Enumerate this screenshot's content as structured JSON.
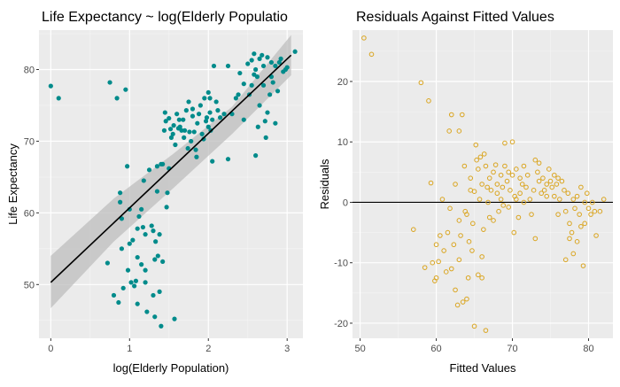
{
  "chart_data": [
    {
      "type": "scatter",
      "title": "Life Expectancy ~ log(Elderly Populatio",
      "xlabel": "log(Elderly Population)",
      "ylabel": "Life Expectancy",
      "xlim": [
        -0.15,
        3.2
      ],
      "ylim": [
        42.5,
        85.5
      ],
      "xticks": [
        0,
        1,
        2,
        3
      ],
      "yticks": [
        50,
        60,
        70,
        80
      ],
      "grid": true,
      "point_color": "#008B8B",
      "fit_color": "#000000",
      "band_color": "#BEBEBE",
      "fit_line": {
        "x": [
          0.0,
          3.05
        ],
        "y": [
          50.3,
          82.0
        ]
      },
      "confidence_band": {
        "x": [
          0.0,
          0.8,
          1.55,
          2.3,
          3.05
        ],
        "lower": [
          46.7,
          56.0,
          63.4,
          71.0,
          79.2
        ],
        "upper": [
          54.0,
          62.0,
          68.2,
          74.8,
          84.8
        ]
      },
      "points": [
        [
          0.0,
          77.7
        ],
        [
          0.1,
          76.0
        ],
        [
          0.72,
          53.0
        ],
        [
          0.75,
          78.2
        ],
        [
          0.8,
          48.5
        ],
        [
          0.84,
          76.0
        ],
        [
          0.86,
          47.5
        ],
        [
          0.88,
          62.8
        ],
        [
          0.9,
          59.2
        ],
        [
          0.9,
          55.0
        ],
        [
          0.92,
          49.5
        ],
        [
          0.95,
          77.2
        ],
        [
          0.97,
          66.5
        ],
        [
          0.98,
          52.0
        ],
        [
          1.0,
          60.5
        ],
        [
          1.0,
          55.7
        ],
        [
          1.02,
          50.3
        ],
        [
          1.04,
          56.2
        ],
        [
          1.06,
          49.8
        ],
        [
          1.08,
          50.5
        ],
        [
          1.1,
          57.8
        ],
        [
          1.1,
          47.3
        ],
        [
          1.12,
          59.5
        ],
        [
          1.15,
          52.8
        ],
        [
          1.15,
          60.5
        ],
        [
          1.17,
          58.0
        ],
        [
          1.18,
          64.5
        ],
        [
          1.2,
          57.0
        ],
        [
          1.2,
          52.0
        ],
        [
          1.2,
          50.3
        ],
        [
          1.22,
          46.2
        ],
        [
          1.25,
          66.0
        ],
        [
          1.28,
          58.2
        ],
        [
          1.3,
          57.5
        ],
        [
          1.3,
          48.5
        ],
        [
          1.32,
          45.5
        ],
        [
          1.32,
          53.5
        ],
        [
          1.33,
          56.0
        ],
        [
          1.35,
          66.5
        ],
        [
          1.35,
          63.0
        ],
        [
          1.36,
          54.0
        ],
        [
          1.38,
          57.0
        ],
        [
          1.38,
          49.0
        ],
        [
          1.4,
          66.8
        ],
        [
          1.4,
          44.2
        ],
        [
          1.42,
          53.2
        ],
        [
          1.42,
          66.8
        ],
        [
          1.44,
          71.5
        ],
        [
          1.45,
          74.0
        ],
        [
          1.46,
          72.8
        ],
        [
          1.47,
          60.8
        ],
        [
          1.48,
          62.8
        ],
        [
          1.5,
          73.2
        ],
        [
          1.52,
          71.7
        ],
        [
          1.53,
          70.5
        ],
        [
          1.55,
          71.0
        ],
        [
          1.56,
          72.2
        ],
        [
          1.57,
          45.2
        ],
        [
          1.58,
          69.5
        ],
        [
          1.6,
          73.8
        ],
        [
          1.62,
          71.8
        ],
        [
          1.63,
          73.0
        ],
        [
          1.64,
          72.0
        ],
        [
          1.66,
          71.5
        ],
        [
          1.68,
          73.0
        ],
        [
          1.69,
          70.5
        ],
        [
          1.7,
          71.5
        ],
        [
          1.72,
          74.3
        ],
        [
          1.74,
          69.0
        ],
        [
          1.75,
          75.5
        ],
        [
          1.76,
          71.3
        ],
        [
          1.78,
          70.0
        ],
        [
          1.8,
          73.5
        ],
        [
          1.8,
          74.5
        ],
        [
          1.82,
          71.3
        ],
        [
          1.84,
          68.8
        ],
        [
          1.85,
          67.8
        ],
        [
          1.86,
          72.5
        ],
        [
          1.88,
          73.8
        ],
        [
          1.9,
          75.0
        ],
        [
          1.92,
          71.0
        ],
        [
          1.94,
          70.3
        ],
        [
          1.95,
          76.0
        ],
        [
          1.97,
          72.8
        ],
        [
          1.98,
          73.3
        ],
        [
          2.0,
          72.0
        ],
        [
          2.0,
          76.8
        ],
        [
          2.02,
          74.0
        ],
        [
          2.03,
          71.5
        ],
        [
          2.05,
          73.0
        ],
        [
          2.05,
          67.2
        ],
        [
          2.07,
          80.5
        ],
        [
          2.1,
          75.5
        ],
        [
          2.12,
          74.3
        ],
        [
          2.15,
          73.3
        ],
        [
          2.2,
          73.8
        ],
        [
          2.25,
          80.5
        ],
        [
          2.25,
          67.5
        ],
        [
          2.3,
          73.8
        ],
        [
          2.35,
          76.0
        ],
        [
          2.38,
          76.5
        ],
        [
          2.4,
          79.5
        ],
        [
          2.45,
          78.0
        ],
        [
          2.45,
          73.0
        ],
        [
          2.5,
          80.8
        ],
        [
          2.52,
          76.5
        ],
        [
          2.55,
          81.3
        ],
        [
          2.55,
          77.8
        ],
        [
          2.58,
          82.2
        ],
        [
          2.6,
          80.0
        ],
        [
          2.6,
          68.0
        ],
        [
          2.62,
          79.0
        ],
        [
          2.63,
          72.0
        ],
        [
          2.65,
          81.5
        ],
        [
          2.65,
          75.0
        ],
        [
          2.68,
          82.0
        ],
        [
          2.7,
          80.5
        ],
        [
          2.72,
          72.8
        ],
        [
          2.73,
          70.5
        ],
        [
          2.75,
          81.7
        ],
        [
          2.75,
          74.0
        ],
        [
          2.78,
          76.5
        ],
        [
          2.8,
          79.0
        ],
        [
          2.8,
          81.0
        ],
        [
          2.82,
          78.2
        ],
        [
          2.85,
          80.5
        ],
        [
          2.85,
          72.5
        ],
        [
          2.88,
          77.0
        ],
        [
          2.9,
          81.0
        ],
        [
          2.92,
          81.5
        ],
        [
          2.95,
          79.7
        ],
        [
          2.98,
          80.0
        ],
        [
          3.0,
          80.3
        ],
        [
          3.1,
          82.5
        ],
        [
          2.02,
          76.0
        ],
        [
          1.5,
          66.2
        ],
        [
          1.1,
          53.8
        ],
        [
          0.88,
          61.5
        ],
        [
          2.58,
          79.3
        ],
        [
          2.7,
          77.8
        ]
      ]
    },
    {
      "type": "scatter",
      "title": "Residuals Against Fitted Values",
      "xlabel": "Fitted Values",
      "ylabel": "Residuals",
      "xlim": [
        49.0,
        83.2
      ],
      "ylim": [
        -22.5,
        28.5
      ],
      "xticks": [
        50,
        60,
        70,
        80
      ],
      "yticks": [
        -20,
        -10,
        0,
        10,
        20
      ],
      "grid": true,
      "point_color": "#DAA520",
      "reference_line_y": 0,
      "points": [
        [
          50.5,
          27.2
        ],
        [
          51.5,
          24.5
        ],
        [
          57.0,
          -4.5
        ],
        [
          58.0,
          19.8
        ],
        [
          58.5,
          -10.8
        ],
        [
          59.0,
          16.8
        ],
        [
          59.3,
          3.2
        ],
        [
          59.5,
          -10.0
        ],
        [
          59.8,
          -13.0
        ],
        [
          60.0,
          -12.5
        ],
        [
          60.3,
          -9.8
        ],
        [
          60.5,
          -5.5
        ],
        [
          60.8,
          0.5
        ],
        [
          61.0,
          -8.0
        ],
        [
          61.3,
          -11.5
        ],
        [
          61.5,
          -5.0
        ],
        [
          61.7,
          11.8
        ],
        [
          61.8,
          -1.0
        ],
        [
          62.0,
          14.5
        ],
        [
          62.0,
          -11.0
        ],
        [
          62.3,
          -7.0
        ],
        [
          62.5,
          -14.5
        ],
        [
          62.5,
          3.0
        ],
        [
          62.8,
          -17.0
        ],
        [
          63.0,
          11.8
        ],
        [
          63.0,
          -9.5
        ],
        [
          63.2,
          -5.5
        ],
        [
          63.4,
          14.5
        ],
        [
          63.5,
          -16.5
        ],
        [
          63.7,
          6.0
        ],
        [
          63.8,
          -1.5
        ],
        [
          64.0,
          -2.0
        ],
        [
          64.2,
          -12.5
        ],
        [
          64.3,
          -6.5
        ],
        [
          64.5,
          4.0
        ],
        [
          64.5,
          2.0
        ],
        [
          64.7,
          -8.0
        ],
        [
          64.8,
          -3.5
        ],
        [
          65.0,
          1.8
        ],
        [
          65.0,
          -20.5
        ],
        [
          65.2,
          9.5
        ],
        [
          65.3,
          7.0
        ],
        [
          65.5,
          -12.0
        ],
        [
          65.5,
          5.5
        ],
        [
          65.7,
          0.5
        ],
        [
          65.8,
          7.5
        ],
        [
          66.0,
          -9.0
        ],
        [
          66.0,
          3.0
        ],
        [
          66.2,
          -4.5
        ],
        [
          66.3,
          8.0
        ],
        [
          66.5,
          -21.2
        ],
        [
          66.5,
          6.0
        ],
        [
          66.7,
          2.5
        ],
        [
          66.8,
          0.0
        ],
        [
          67.0,
          -2.5
        ],
        [
          67.0,
          4.0
        ],
        [
          67.2,
          2.0
        ],
        [
          67.5,
          5.0
        ],
        [
          67.5,
          -3.0
        ],
        [
          67.8,
          6.2
        ],
        [
          68.0,
          3.0
        ],
        [
          68.0,
          1.5
        ],
        [
          68.2,
          -1.5
        ],
        [
          68.5,
          4.5
        ],
        [
          68.5,
          0.5
        ],
        [
          68.7,
          2.5
        ],
        [
          68.8,
          -0.5
        ],
        [
          69.0,
          6.0
        ],
        [
          69.0,
          9.8
        ],
        [
          69.3,
          3.5
        ],
        [
          69.5,
          -0.8
        ],
        [
          69.5,
          5.0
        ],
        [
          69.7,
          2.0
        ],
        [
          70.0,
          10.0
        ],
        [
          70.0,
          4.5
        ],
        [
          70.2,
          -5.0
        ],
        [
          70.3,
          1.0
        ],
        [
          70.5,
          5.5
        ],
        [
          70.5,
          0.5
        ],
        [
          70.8,
          -2.5
        ],
        [
          71.0,
          4.0
        ],
        [
          71.0,
          1.5
        ],
        [
          71.3,
          3.0
        ],
        [
          71.5,
          6.0
        ],
        [
          71.5,
          0.0
        ],
        [
          71.8,
          2.5
        ],
        [
          72.0,
          4.5
        ],
        [
          72.3,
          0.5
        ],
        [
          72.5,
          -2.0
        ],
        [
          72.8,
          2.0
        ],
        [
          73.0,
          7.0
        ],
        [
          73.0,
          -6.0
        ],
        [
          73.3,
          5.0
        ],
        [
          73.5,
          3.5
        ],
        [
          73.5,
          6.5
        ],
        [
          73.8,
          1.5
        ],
        [
          74.0,
          4.0
        ],
        [
          74.2,
          2.0
        ],
        [
          74.5,
          3.0
        ],
        [
          74.5,
          1.0
        ],
        [
          74.8,
          5.5
        ],
        [
          75.0,
          3.5
        ],
        [
          75.2,
          2.5
        ],
        [
          75.5,
          4.5
        ],
        [
          75.5,
          1.0
        ],
        [
          75.8,
          3.0
        ],
        [
          76.0,
          -2.0
        ],
        [
          76.0,
          4.0
        ],
        [
          76.2,
          0.5
        ],
        [
          76.5,
          3.5
        ],
        [
          76.8,
          2.0
        ],
        [
          77.0,
          -1.5
        ],
        [
          77.0,
          -9.5
        ],
        [
          77.3,
          1.5
        ],
        [
          77.5,
          -3.5
        ],
        [
          77.5,
          -6.0
        ],
        [
          77.8,
          -5.0
        ],
        [
          78.0,
          0.5
        ],
        [
          78.0,
          -8.5
        ],
        [
          78.2,
          -1.0
        ],
        [
          78.5,
          1.0
        ],
        [
          78.5,
          -6.5
        ],
        [
          78.8,
          -2.0
        ],
        [
          79.0,
          2.5
        ],
        [
          79.0,
          -4.0
        ],
        [
          79.3,
          -10.5
        ],
        [
          79.5,
          0.0
        ],
        [
          79.5,
          -3.5
        ],
        [
          79.8,
          1.5
        ],
        [
          80.0,
          -1.0
        ],
        [
          80.3,
          -2.0
        ],
        [
          80.5,
          0.0
        ],
        [
          80.8,
          -1.5
        ],
        [
          81.0,
          -5.5
        ],
        [
          81.5,
          -1.5
        ],
        [
          82.0,
          0.5
        ],
        [
          66.0,
          -12.5
        ],
        [
          64.0,
          -16.0
        ],
        [
          60.0,
          -7.0
        ],
        [
          63.0,
          -3.0
        ]
      ]
    }
  ]
}
